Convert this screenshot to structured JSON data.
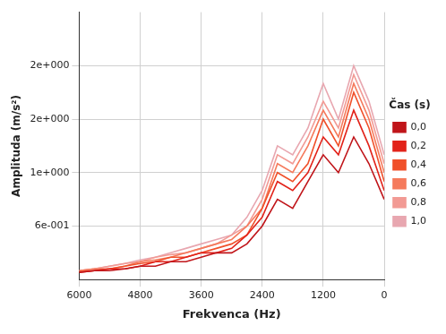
{
  "chart_data": {
    "type": "line",
    "x_label": "Frekvenca (Hz)",
    "y_label": "Amplituda (m/s²)",
    "legend_title": "Čas (s)",
    "x": [
      0,
      300,
      600,
      900,
      1200,
      1500,
      1800,
      2100,
      2400,
      2700,
      3000,
      3300,
      3600,
      3900,
      4200,
      4500,
      4800,
      5100,
      5400,
      5700,
      6000
    ],
    "series": [
      {
        "name": "0,0",
        "color": "#c0151a",
        "line_style": "solid",
        "values": [
          0.9,
          1.3,
          1.6,
          1.2,
          1.4,
          1.1,
          0.8,
          0.9,
          0.6,
          0.4,
          0.3,
          0.3,
          0.25,
          0.2,
          0.2,
          0.15,
          0.15,
          0.12,
          0.1,
          0.1,
          0.08
        ]
      },
      {
        "name": "0,2",
        "color": "#e2231a",
        "line_style": "solid",
        "values": [
          1.0,
          1.5,
          1.9,
          1.4,
          1.6,
          1.2,
          1.0,
          1.1,
          0.7,
          0.5,
          0.35,
          0.3,
          0.3,
          0.25,
          0.2,
          0.2,
          0.15,
          0.12,
          0.12,
          0.1,
          0.08
        ]
      },
      {
        "name": "0,4",
        "color": "#f0502a",
        "line_style": "solid",
        "values": [
          1.1,
          1.7,
          2.1,
          1.5,
          1.8,
          1.3,
          1.1,
          1.2,
          0.8,
          0.5,
          0.4,
          0.35,
          0.3,
          0.25,
          0.25,
          0.2,
          0.18,
          0.15,
          0.12,
          0.1,
          0.09
        ]
      },
      {
        "name": "0,6",
        "color": "#f57a5c",
        "line_style": "solid",
        "values": [
          1.2,
          1.8,
          2.2,
          1.6,
          1.9,
          1.5,
          1.2,
          1.3,
          0.8,
          0.6,
          0.45,
          0.4,
          0.35,
          0.3,
          0.25,
          0.22,
          0.2,
          0.15,
          0.12,
          0.12,
          0.1
        ]
      },
      {
        "name": "0,8",
        "color": "#f29a94",
        "line_style": "solid",
        "values": [
          1.3,
          1.9,
          2.3,
          1.7,
          2.0,
          1.6,
          1.3,
          1.4,
          0.9,
          0.6,
          0.5,
          0.4,
          0.35,
          0.3,
          0.28,
          0.25,
          0.2,
          0.18,
          0.15,
          0.12,
          0.1
        ]
      },
      {
        "name": "1,0",
        "color": "#e8a7b0",
        "line_style": "solid",
        "values": [
          1.4,
          2.0,
          2.4,
          1.8,
          2.2,
          1.7,
          1.4,
          1.5,
          1.0,
          0.7,
          0.5,
          0.45,
          0.4,
          0.35,
          0.3,
          0.25,
          0.22,
          0.18,
          0.15,
          0.12,
          0.1
        ]
      }
    ],
    "xlim": [
      0,
      6000
    ],
    "xticks": [
      0,
      1200,
      2400,
      3600,
      4800,
      6000
    ],
    "ylim": [
      0,
      3
    ],
    "yticks": [
      {
        "value": 0.6,
        "label": "6e-001"
      },
      {
        "value": 1.2,
        "label": "1e+000"
      },
      {
        "value": 1.8,
        "label": "2e+000"
      },
      {
        "value": 2.4,
        "label": "2e+000"
      }
    ],
    "grid": true,
    "legend": "right"
  }
}
